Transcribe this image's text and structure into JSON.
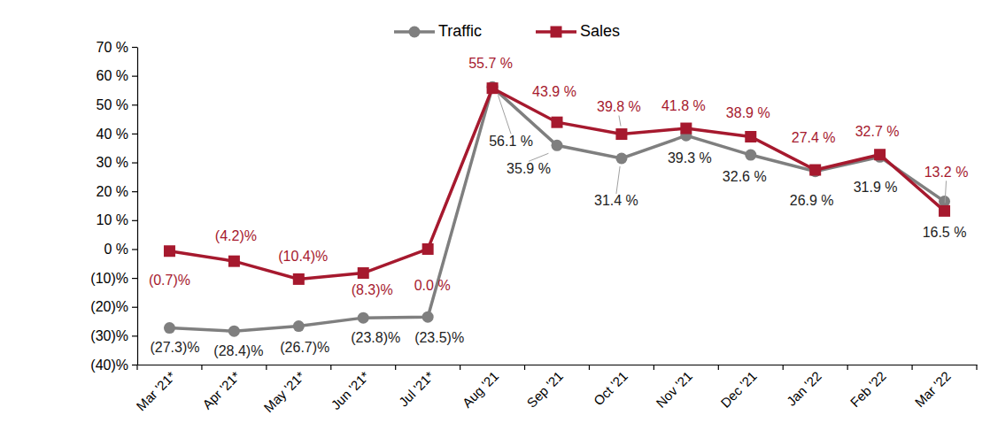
{
  "chart_data": {
    "type": "line",
    "categories": [
      "Mar '21*",
      "Apr '21*",
      "May '21*",
      "Jun '21*",
      "Jul '21*",
      "Aug '21",
      "Sep '21",
      "Oct '21",
      "Nov '21",
      "Dec '21",
      "Jan '22",
      "Feb '22",
      "Mar '22"
    ],
    "series": [
      {
        "name": "Traffic",
        "color": "#7f7f7f",
        "marker": "circle",
        "values": [
          -27.3,
          -28.4,
          -26.7,
          -23.8,
          -23.5,
          56.1,
          35.9,
          31.4,
          39.3,
          32.6,
          26.9,
          31.9,
          16.5
        ],
        "value_labels": [
          "(27.3)%",
          "(28.4)%",
          "(26.7)%",
          "(23.8)%",
          "(23.5)%",
          "56.1 %",
          "35.9 %",
          "31.4 %",
          "39.3 %",
          "32.6 %",
          "26.9 %",
          "31.9 %",
          "16.5 %"
        ]
      },
      {
        "name": "Sales",
        "color": "#a6192e",
        "marker": "square",
        "values": [
          -0.7,
          -4.2,
          -10.4,
          -8.3,
          0.0,
          55.7,
          43.9,
          39.8,
          41.8,
          38.9,
          27.4,
          32.7,
          13.2
        ],
        "value_labels": [
          "(0.7)%",
          "(4.2)%",
          "(10.4)%",
          "(8.3)%",
          "0.0 %",
          "55.7 %",
          "43.9 %",
          "39.8 %",
          "41.8 %",
          "38.9 %",
          "27.4 %",
          "32.7 %",
          "13.2 %"
        ]
      }
    ],
    "ylim": [
      -40,
      70
    ],
    "yticks": [
      {
        "value": -40,
        "label": "(40)%"
      },
      {
        "value": -30,
        "label": "(30)%"
      },
      {
        "value": -20,
        "label": "(20)%"
      },
      {
        "value": -10,
        "label": "(10)%"
      },
      {
        "value": 0,
        "label": "0 %"
      },
      {
        "value": 10,
        "label": "10 %"
      },
      {
        "value": 20,
        "label": "20 %"
      },
      {
        "value": 30,
        "label": "30 %"
      },
      {
        "value": 40,
        "label": "40 %"
      },
      {
        "value": 50,
        "label": "50 %"
      },
      {
        "value": 60,
        "label": "60 %"
      },
      {
        "value": 70,
        "label": "70 %"
      }
    ],
    "grid": false,
    "legend": "top",
    "data_labels": true
  }
}
